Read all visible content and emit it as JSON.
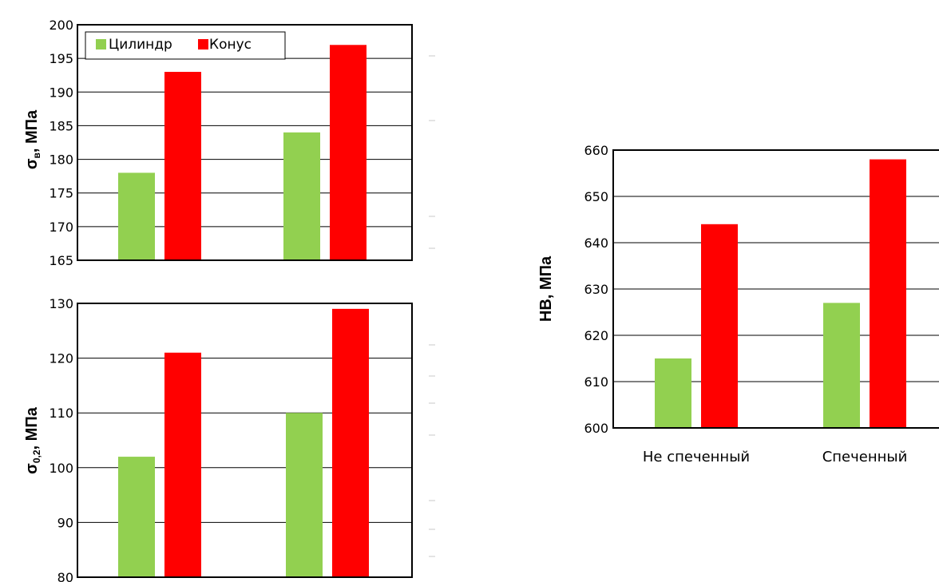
{
  "colors": {
    "cylinder": "#92d050",
    "cone": "#ff0000"
  },
  "legend": {
    "cylinder": "Цилиндр",
    "cone": "Конус"
  },
  "chart_data": [
    {
      "type": "bar",
      "ylabel": "σв, МПа",
      "ylabel_main": "σ",
      "ylabel_sub": "в",
      "ylabel_unit": ", МПа",
      "ylim": [
        165,
        200
      ],
      "yticks": [
        165,
        170,
        175,
        180,
        185,
        190,
        195,
        200
      ],
      "categories": [
        "",
        ""
      ],
      "series": [
        {
          "name": "Цилиндр",
          "values": [
            178,
            184
          ]
        },
        {
          "name": "Конус",
          "values": [
            193,
            197
          ]
        }
      ],
      "legend": "top-left",
      "grid": true
    },
    {
      "type": "bar",
      "ylabel": "σ0,2, МПа",
      "ylabel_main": "σ",
      "ylabel_sub": "0,2",
      "ylabel_unit": ", МПа",
      "ylim": [
        80,
        130
      ],
      "yticks": [
        80,
        90,
        100,
        110,
        120,
        130
      ],
      "categories": [
        "",
        ""
      ],
      "series": [
        {
          "name": "Цилиндр",
          "values": [
            102,
            110
          ]
        },
        {
          "name": "Конус",
          "values": [
            121,
            129
          ]
        }
      ],
      "grid": true
    },
    {
      "type": "bar",
      "ylabel": "HB,   МПа",
      "ylim": [
        600,
        660
      ],
      "yticks": [
        600,
        610,
        620,
        630,
        640,
        650,
        660
      ],
      "categories": [
        "Не  спеченный",
        "Спеченный"
      ],
      "series": [
        {
          "name": "Цилиндр",
          "values": [
            615,
            627
          ]
        },
        {
          "name": "Конус",
          "values": [
            644,
            658
          ]
        }
      ],
      "grid": true
    }
  ]
}
